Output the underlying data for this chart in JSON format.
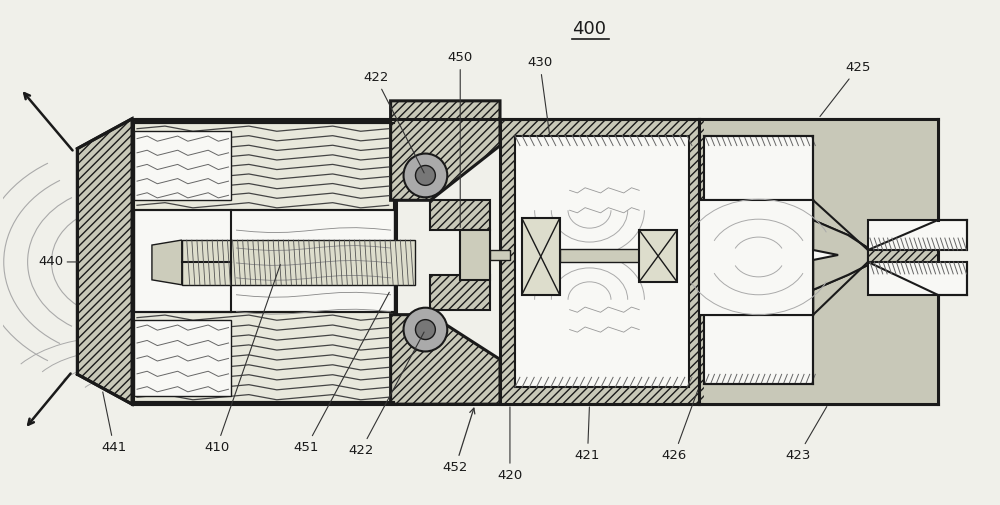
{
  "bg_color": "#f0f0ea",
  "line_color": "#1a1a1a",
  "fig_width": 10.0,
  "fig_height": 5.05,
  "title": "400",
  "hatch_fill": "#c8c8b8",
  "white_fill": "#f8f8f5",
  "light_fill": "#e8e8dc"
}
